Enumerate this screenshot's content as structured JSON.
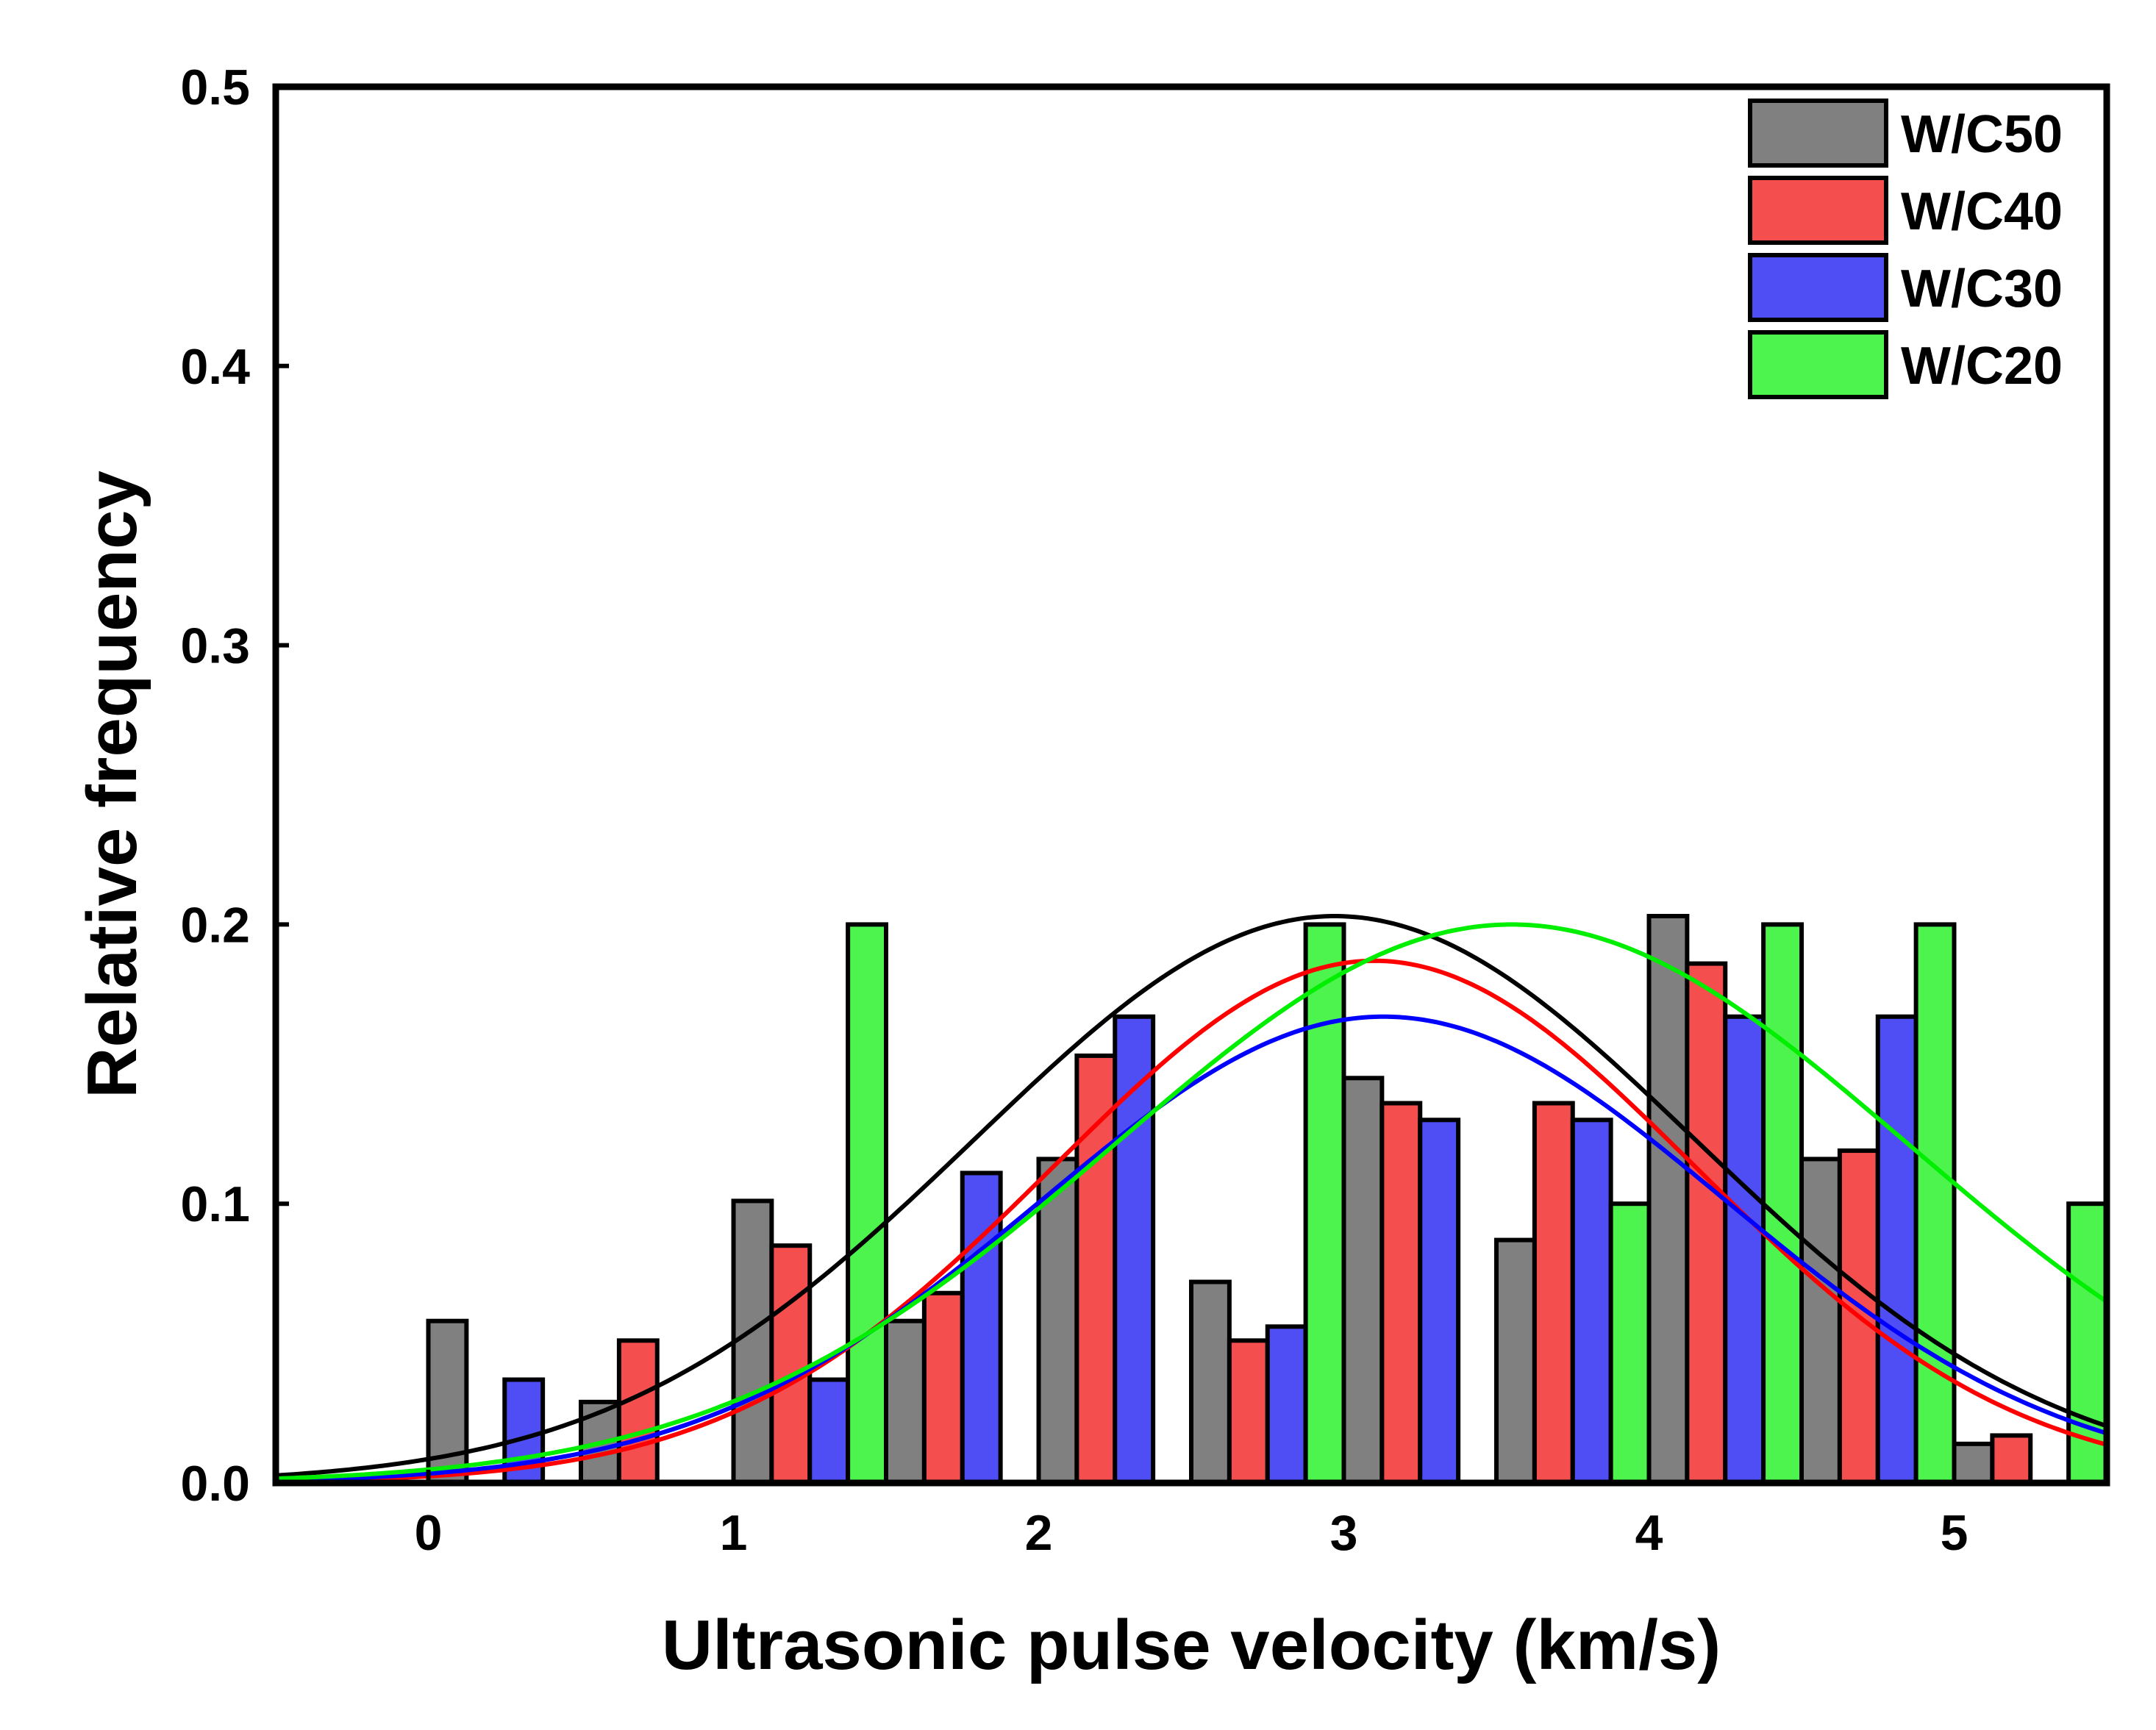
{
  "chart_data": {
    "type": "bar",
    "xlabel": "Ultrasonic pulse velocity (km/s)",
    "ylabel": "Relative frequency",
    "xlim": [
      -0.5,
      5.5
    ],
    "ylim": [
      0,
      0.5
    ],
    "x_ticks": [
      0,
      1,
      2,
      3,
      4,
      5
    ],
    "x_tick_labels": [
      "0",
      "1",
      "2",
      "3",
      "4",
      "5"
    ],
    "y_ticks": [
      0.0,
      0.1,
      0.2,
      0.3,
      0.4,
      0.5
    ],
    "y_tick_labels": [
      "0.0",
      "0.1",
      "0.2",
      "0.3",
      "0.4",
      "0.5"
    ],
    "grid": false,
    "legend_position": "top-right",
    "bar_width": 0.125,
    "series": [
      {
        "name": "W/C50",
        "color": "#808080",
        "line_color": "#000000",
        "x": [
          0.0625,
          0.5625,
          1.0625,
          1.5625,
          2.0625,
          2.5625,
          3.0625,
          3.5625,
          4.0625,
          4.5625,
          5.0625
        ],
        "values": [
          0.058,
          0.029,
          0.101,
          0.058,
          0.116,
          0.072,
          0.145,
          0.087,
          0.203,
          0.116,
          0.014
        ],
        "fit": {
          "mean": 2.97,
          "amplitude": 0.203,
          "sigma": 1.18
        }
      },
      {
        "name": "W/C40",
        "color": "#F44E4E",
        "line_color": "#FF0000",
        "x": [
          0.6875,
          1.1875,
          1.6875,
          2.1875,
          2.6875,
          3.1875,
          3.6875,
          4.1875,
          4.6875,
          5.1875
        ],
        "values": [
          0.051,
          0.085,
          0.068,
          0.153,
          0.051,
          0.136,
          0.136,
          0.186,
          0.119,
          0.017
        ],
        "fit": {
          "mean": 3.1,
          "amplitude": 0.187,
          "sigma": 1.05
        }
      },
      {
        "name": "W/C30",
        "color": "#4E4EF4",
        "line_color": "#0000FF",
        "x": [
          0.3125,
          1.3125,
          1.8125,
          2.3125,
          2.8125,
          3.3125,
          3.8125,
          4.3125,
          4.8125
        ],
        "values": [
          0.037,
          0.037,
          0.111,
          0.167,
          0.056,
          0.13,
          0.13,
          0.167,
          0.167
        ],
        "fit": {
          "mean": 3.13,
          "amplitude": 0.167,
          "sigma": 1.12
        }
      },
      {
        "name": "W/C20",
        "color": "#4EF44E",
        "line_color": "#00EE00",
        "x": [
          1.4375,
          2.9375,
          3.9375,
          4.4375,
          4.9375,
          5.4375
        ],
        "values": [
          0.2,
          0.2,
          0.1,
          0.2,
          0.2,
          0.1
        ],
        "fit": {
          "mean": 3.55,
          "amplitude": 0.2,
          "sigma": 1.3
        }
      }
    ]
  }
}
